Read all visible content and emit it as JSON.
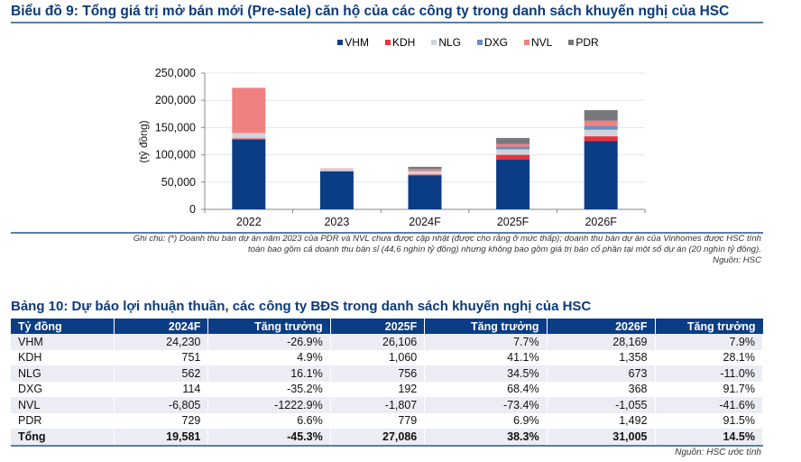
{
  "chart_title": "Biểu đồ 9: Tổng giá trị mở bán mới (Pre-sale) căn hộ của các công ty trong danh sách khuyến nghị của HSC",
  "chart_data": {
    "type": "bar",
    "stacked": true,
    "title": "Biểu đồ 9: Tổng giá trị mở bán mới (Pre-sale) căn hộ của các công ty trong danh sách khuyến nghị của HSC",
    "xlabel": "",
    "ylabel": "(tỷ đồng)",
    "ylim": [
      0,
      250000
    ],
    "yticks": [
      0,
      50000,
      100000,
      150000,
      200000,
      250000
    ],
    "ytick_labels": [
      "0",
      "50,000",
      "100,000",
      "150,000",
      "200,000",
      "250,000"
    ],
    "grid": true,
    "legend_position": "top",
    "categories": [
      "2022",
      "2023",
      "2024F",
      "2025F",
      "2026F"
    ],
    "series": [
      {
        "name": "VHM",
        "color": "#0b3d85",
        "values": [
          128000,
          70000,
          62000,
          91000,
          125000
        ]
      },
      {
        "name": "KDH",
        "color": "#e8323c",
        "values": [
          2000,
          0,
          2000,
          9000,
          9000
        ]
      },
      {
        "name": "NLG",
        "color": "#cfd4dc",
        "values": [
          10000,
          4000,
          6000,
          10000,
          12000
        ]
      },
      {
        "name": "DXG",
        "color": "#6b8fc0",
        "values": [
          0,
          0,
          1000,
          5000,
          7000
        ]
      },
      {
        "name": "NVL",
        "color": "#f08080",
        "values": [
          83000,
          1000,
          3000,
          5000,
          10000
        ]
      },
      {
        "name": "PDR",
        "color": "#75787c",
        "values": [
          0,
          0,
          4000,
          11000,
          19000
        ]
      }
    ]
  },
  "note_lines": [
    "Ghi chú: (*) Doanh thu bán dự án năm 2023 của PDR và NVL chưa được cập nhật (được cho rằng ở mức thấp); doanh thu bán dự án của Vinhomes được HSC tính",
    "toán bao gồm cả doanh thu bán sỉ (44,6 nghìn tỷ đồng) nhưng không bao gồm giá trị bán cổ phần tại một số dự án (20 nghìn tỷ đồng).",
    "Nguồn: HSC"
  ],
  "table": {
    "title": "Bảng 10: Dự báo lợi nhuận thuần, các công ty BĐS trong danh sách khuyến nghị của HSC",
    "headers": [
      "Tỷ đồng",
      "2024F",
      "Tăng trưởng",
      "2025F",
      "Tăng trưởng",
      "2026F",
      "Tăng trưởng"
    ],
    "rows": [
      [
        "VHM",
        "24,230",
        "-26.9%",
        "26,106",
        "7.7%",
        "28,169",
        "7.9%"
      ],
      [
        "KDH",
        "751",
        "4.9%",
        "1,060",
        "41.1%",
        "1,358",
        "28.1%"
      ],
      [
        "NLG",
        "562",
        "16.1%",
        "756",
        "34.5%",
        "673",
        "-11.0%"
      ],
      [
        "DXG",
        "114",
        "-35.2%",
        "192",
        "68.4%",
        "368",
        "91.7%"
      ],
      [
        "NVL",
        "-6,805",
        "-1222.9%",
        "-1,807",
        "-73.4%",
        "-1,055",
        "-41.6%"
      ],
      [
        "PDR",
        "729",
        "6.6%",
        "779",
        "6.9%",
        "1,492",
        "91.5%"
      ]
    ],
    "total": [
      "Tổng",
      "19,581",
      "-45.3%",
      "27,086",
      "38.3%",
      "31,005",
      "14.5%"
    ],
    "source": "Nguồn: HSC ước tính"
  }
}
